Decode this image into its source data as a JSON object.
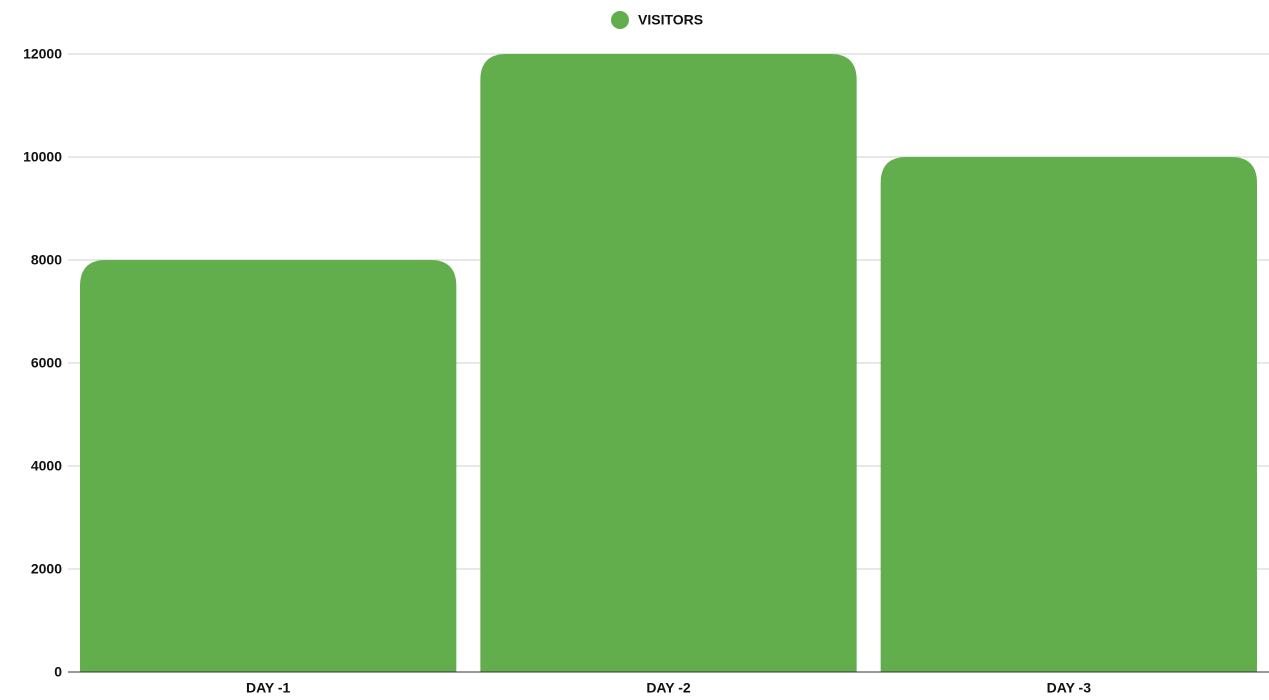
{
  "chart_data": {
    "type": "bar",
    "categories": [
      "DAY -1",
      "DAY -2",
      "DAY -3"
    ],
    "series": [
      {
        "name": "VISITORS",
        "color": "#62ae4c",
        "values": [
          8000,
          12000,
          10000
        ]
      }
    ],
    "ylim": [
      0,
      12000
    ],
    "yticks": [
      0,
      2000,
      4000,
      6000,
      8000,
      10000,
      12000
    ],
    "grid": true,
    "legend": "top"
  }
}
